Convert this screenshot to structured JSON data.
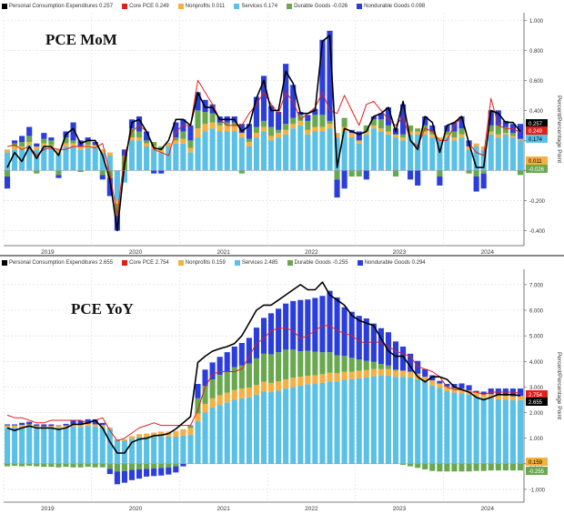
{
  "chart_data": [
    {
      "type": "bar",
      "title": "PCE MoM",
      "ylabel": "Percent/Percentage Point",
      "ylim": [
        -0.5,
        1.05
      ],
      "yticks": [
        "1.000",
        "0.800",
        "0.600",
        "0.400",
        "0.200",
        "0.000",
        "-0.200",
        "-0.400"
      ],
      "xticks": [
        "2019",
        "2020",
        "2021",
        "2022",
        "2023",
        "2024"
      ],
      "legend": [
        {
          "name": "Personal Consumption Expenditures",
          "value": "0.257",
          "color": "#000000"
        },
        {
          "name": "Core PCE",
          "value": "0.249",
          "color": "#e0201b"
        },
        {
          "name": "Nonprofits",
          "value": "0.011",
          "color": "#f5b041"
        },
        {
          "name": "Services",
          "value": "0.174",
          "color": "#5bc0e6"
        },
        {
          "name": "Durable Goods",
          "value": "-0.026",
          "color": "#6aa84f"
        },
        {
          "name": "Nondurable Goods",
          "value": "0.098",
          "color": "#2b3ddb"
        }
      ],
      "last_labels": [
        {
          "text": "0.257",
          "color": "#000000"
        },
        {
          "text": "0.249",
          "color": "#e0201b"
        },
        {
          "text": "0.174",
          "color": "#5bc0e6"
        },
        {
          "text": "0.011",
          "color": "#f5b041"
        },
        {
          "text": "-0.026",
          "color": "#6aa84f"
        }
      ],
      "series": [
        {
          "name": "Services",
          "values": [
            0.12,
            0.14,
            0.14,
            0.17,
            0.14,
            0.16,
            0.15,
            0.12,
            0.16,
            0.16,
            0.14,
            0.15,
            0.15,
            0.12,
            0.1,
            -0.2,
            -0.08,
            0.2,
            0.2,
            0.16,
            0.14,
            0.12,
            0.16,
            0.18,
            0.18,
            0.12,
            0.22,
            0.26,
            0.28,
            0.26,
            0.26,
            0.26,
            0.22,
            0.16,
            0.22,
            0.26,
            0.2,
            0.22,
            0.24,
            0.28,
            0.3,
            0.24,
            0.26,
            0.26,
            0.28,
            0.22,
            0.26,
            0.22,
            0.18,
            0.24,
            0.28,
            0.26,
            0.24,
            0.22,
            0.2,
            0.24,
            0.24,
            0.24,
            0.22,
            0.2,
            0.22,
            0.2,
            0.22,
            0.14,
            0.16,
            0.14,
            0.24,
            0.22,
            0.24,
            0.22,
            0.2
          ]
        },
        {
          "name": "Nonprofits",
          "values": [
            0.02,
            0.02,
            0.02,
            0.02,
            0.02,
            0.02,
            0.02,
            0.02,
            0.02,
            0.02,
            0.02,
            0.02,
            0.02,
            0.02,
            0.02,
            -0.02,
            0.0,
            0.02,
            0.02,
            0.02,
            0.02,
            0.02,
            0.02,
            0.02,
            0.03,
            0.03,
            0.06,
            0.05,
            0.04,
            0.04,
            0.04,
            0.04,
            0.03,
            0.03,
            0.03,
            0.03,
            0.03,
            0.03,
            0.03,
            0.03,
            0.03,
            0.03,
            0.03,
            0.03,
            0.03,
            0.03,
            0.03,
            0.03,
            0.02,
            0.02,
            0.02,
            0.02,
            0.02,
            0.02,
            0.02,
            0.02,
            0.02,
            0.02,
            0.02,
            0.02,
            0.02,
            0.02,
            0.02,
            0.02,
            0.02,
            0.02,
            0.02,
            0.02,
            0.01,
            0.01,
            0.01
          ]
        },
        {
          "name": "Durable Goods",
          "values": [
            -0.04,
            0.02,
            0.03,
            0.04,
            -0.02,
            0.03,
            0.03,
            -0.03,
            0.04,
            0.02,
            -0.01,
            0.03,
            0.0,
            -0.03,
            -0.05,
            -0.08,
            0.1,
            0.06,
            0.04,
            0.02,
            0.03,
            0.02,
            0.0,
            0.02,
            0.05,
            0.05,
            0.12,
            0.08,
            0.06,
            0.02,
            0.02,
            0.02,
            -0.02,
            0.02,
            0.04,
            0.04,
            0.06,
            0.02,
            0.04,
            0.04,
            0.04,
            0.06,
            0.08,
            0.08,
            0.02,
            -0.06,
            0.06,
            -0.04,
            -0.04,
            0.04,
            0.04,
            0.06,
            0.04,
            -0.04,
            0.02,
            0.04,
            0.02,
            0.04,
            0.02,
            -0.04,
            0.02,
            0.04,
            0.04,
            -0.02,
            -0.04,
            -0.02,
            0.04,
            0.06,
            0.04,
            0.02,
            -0.03
          ]
        },
        {
          "name": "Nondurable Goods",
          "values": [
            -0.08,
            0.02,
            0.04,
            0.06,
            0.02,
            0.04,
            0.02,
            -0.02,
            0.04,
            0.12,
            0.04,
            0.02,
            0.02,
            -0.03,
            -0.12,
            -0.1,
            0.04,
            0.06,
            0.1,
            0.06,
            -0.02,
            -0.02,
            0.0,
            0.1,
            0.08,
            0.1,
            0.12,
            0.08,
            0.06,
            0.04,
            0.04,
            0.04,
            0.06,
            0.1,
            0.2,
            0.3,
            0.14,
            0.12,
            0.4,
            0.22,
            0.02,
            0.04,
            0.04,
            0.5,
            0.6,
            -0.12,
            -0.12,
            0.02,
            0.06,
            -0.06,
            0.02,
            0.04,
            0.12,
            0.04,
            0.2,
            -0.06,
            -0.1,
            0.06,
            0.04,
            -0.06,
            0.04,
            0.06,
            0.08,
            0.04,
            -0.1,
            -0.1,
            0.1,
            0.1,
            0.04,
            0.06,
            0.1
          ]
        },
        {
          "name": "Personal Consumption Expenditures",
          "values": [
            0.02,
            0.12,
            0.06,
            0.16,
            0.08,
            0.16,
            0.16,
            0.1,
            0.24,
            0.28,
            0.18,
            0.2,
            0.2,
            0.1,
            -0.06,
            -0.4,
            0.04,
            0.32,
            0.34,
            0.26,
            0.15,
            0.14,
            0.2,
            0.34,
            0.34,
            0.3,
            0.52,
            0.42,
            0.42,
            0.34,
            0.34,
            0.34,
            0.26,
            0.3,
            0.48,
            0.6,
            0.4,
            0.4,
            0.66,
            0.58,
            0.38,
            0.38,
            0.4,
            0.86,
            0.9,
            0.02,
            0.28,
            0.26,
            0.24,
            0.26,
            0.36,
            0.38,
            0.42,
            0.26,
            0.46,
            0.2,
            0.14,
            0.36,
            0.32,
            0.12,
            0.3,
            0.32,
            0.36,
            0.18,
            0.02,
            0.02,
            0.4,
            0.38,
            0.32,
            0.32,
            0.26
          ]
        },
        {
          "name": "Core PCE",
          "values": [
            0.16,
            0.17,
            0.14,
            0.16,
            0.1,
            0.14,
            0.15,
            0.14,
            0.14,
            0.16,
            0.16,
            0.16,
            0.15,
            0.18,
            -0.02,
            -0.3,
            0.1,
            0.26,
            0.3,
            0.26,
            0.14,
            0.12,
            0.1,
            0.26,
            0.3,
            0.3,
            0.6,
            0.52,
            0.44,
            0.34,
            0.3,
            0.3,
            0.3,
            0.38,
            0.44,
            0.52,
            0.44,
            0.38,
            0.52,
            0.46,
            0.34,
            0.38,
            0.42,
            0.52,
            0.4,
            0.38,
            0.5,
            0.4,
            0.3,
            0.44,
            0.46,
            0.4,
            0.34,
            0.3,
            0.36,
            0.2,
            0.16,
            0.28,
            0.26,
            0.2,
            0.2,
            0.3,
            0.36,
            0.18,
            0.12,
            0.1,
            0.48,
            0.3,
            0.28,
            0.28,
            0.25
          ]
        }
      ]
    },
    {
      "type": "bar",
      "title": "PCE YoY",
      "ylabel": "Percent/Percentage Point",
      "ylim": [
        -1.5,
        7.6
      ],
      "yticks": [
        "7.000",
        "6.000",
        "5.000",
        "4.000",
        "3.000",
        "2.000",
        "1.000",
        "0.000",
        "-1.000"
      ],
      "xticks": [
        "2019",
        "2020",
        "2021",
        "2022",
        "2023",
        "2024"
      ],
      "legend": [
        {
          "name": "Personal Consumption Expenditures",
          "value": "2.655",
          "color": "#000000"
        },
        {
          "name": "Core PCE",
          "value": "2.754",
          "color": "#e0201b"
        },
        {
          "name": "Nonprofits",
          "value": "0.159",
          "color": "#f5b041"
        },
        {
          "name": "Services",
          "value": "2.485",
          "color": "#5bc0e6"
        },
        {
          "name": "Durable Goods",
          "value": "-0.255",
          "color": "#6aa84f"
        },
        {
          "name": "Nondurable Goods",
          "value": "0.294",
          "color": "#2b3ddb"
        }
      ],
      "last_labels": [
        {
          "text": "2.754",
          "color": "#e0201b"
        },
        {
          "text": "2.655",
          "color": "#000000"
        },
        {
          "text": "0.159",
          "color": "#f5b041"
        },
        {
          "text": "-0.255",
          "color": "#6aa84f"
        }
      ],
      "series": [
        {
          "name": "Services",
          "values": [
            1.42,
            1.42,
            1.44,
            1.46,
            1.4,
            1.38,
            1.4,
            1.4,
            1.42,
            1.46,
            1.44,
            1.48,
            1.46,
            1.44,
            1.36,
            0.92,
            0.9,
            0.98,
            1.04,
            1.04,
            1.06,
            1.08,
            1.06,
            1.06,
            1.1,
            1.14,
            1.66,
            2.0,
            2.2,
            2.3,
            2.4,
            2.5,
            2.56,
            2.6,
            2.7,
            2.82,
            2.8,
            2.86,
            2.94,
            3.0,
            3.06,
            3.1,
            3.12,
            3.16,
            3.22,
            3.22,
            3.28,
            3.3,
            3.34,
            3.38,
            3.42,
            3.44,
            3.44,
            3.4,
            3.4,
            3.38,
            3.3,
            3.2,
            3.06,
            2.96,
            2.84,
            2.78,
            2.76,
            2.7,
            2.62,
            2.56,
            2.56,
            2.52,
            2.5,
            2.48,
            2.49
          ]
        },
        {
          "name": "Nonprofits",
          "values": [
            0.08,
            0.08,
            0.08,
            0.08,
            0.08,
            0.08,
            0.08,
            0.08,
            0.08,
            0.08,
            0.08,
            0.08,
            0.08,
            0.08,
            0.06,
            0.04,
            0.06,
            0.1,
            0.12,
            0.14,
            0.16,
            0.18,
            0.2,
            0.22,
            0.24,
            0.26,
            0.3,
            0.34,
            0.36,
            0.38,
            0.38,
            0.38,
            0.38,
            0.38,
            0.38,
            0.38,
            0.36,
            0.36,
            0.36,
            0.36,
            0.34,
            0.34,
            0.34,
            0.34,
            0.34,
            0.32,
            0.32,
            0.3,
            0.3,
            0.28,
            0.28,
            0.26,
            0.26,
            0.24,
            0.24,
            0.22,
            0.22,
            0.2,
            0.2,
            0.18,
            0.18,
            0.18,
            0.18,
            0.17,
            0.17,
            0.16,
            0.16,
            0.16,
            0.16,
            0.16,
            0.16
          ]
        },
        {
          "name": "Durable Goods",
          "values": [
            -0.1,
            -0.08,
            -0.1,
            -0.08,
            -0.1,
            -0.12,
            -0.12,
            -0.14,
            -0.12,
            -0.14,
            -0.14,
            -0.12,
            -0.14,
            -0.14,
            -0.2,
            -0.3,
            -0.28,
            -0.24,
            -0.22,
            -0.2,
            -0.18,
            -0.16,
            -0.14,
            -0.1,
            0.0,
            0.1,
            0.6,
            0.7,
            0.74,
            0.8,
            0.84,
            0.9,
            0.9,
            0.94,
            1.04,
            1.1,
            1.12,
            1.14,
            1.16,
            1.1,
            1.0,
            0.98,
            0.92,
            0.86,
            0.8,
            0.7,
            0.62,
            0.54,
            0.44,
            0.36,
            0.28,
            0.2,
            0.14,
            0.04,
            -0.04,
            -0.1,
            -0.16,
            -0.22,
            -0.28,
            -0.3,
            -0.3,
            -0.3,
            -0.3,
            -0.3,
            -0.28,
            -0.28,
            -0.26,
            -0.26,
            -0.26,
            -0.26,
            -0.26
          ]
        },
        {
          "name": "Nondurable Goods",
          "values": [
            0.04,
            0.04,
            0.08,
            0.1,
            0.06,
            0.08,
            0.06,
            0.02,
            0.06,
            0.14,
            0.16,
            0.18,
            0.2,
            0.08,
            -0.2,
            -0.5,
            -0.46,
            -0.4,
            -0.36,
            -0.3,
            -0.3,
            -0.3,
            -0.28,
            -0.24,
            -0.1,
            0.0,
            0.56,
            0.64,
            0.66,
            0.7,
            0.74,
            0.8,
            0.88,
            1.0,
            1.2,
            1.4,
            1.6,
            1.7,
            1.8,
            1.9,
            2.0,
            2.0,
            2.1,
            2.2,
            2.4,
            2.26,
            1.9,
            1.8,
            1.7,
            1.66,
            1.5,
            1.4,
            1.3,
            1.1,
            0.94,
            0.7,
            0.5,
            0.3,
            0.2,
            0.1,
            0.1,
            0.16,
            0.2,
            0.2,
            0.06,
            0.1,
            0.22,
            0.26,
            0.28,
            0.3,
            0.29
          ]
        },
        {
          "name": "Personal Consumption Expenditures",
          "values": [
            1.4,
            1.3,
            1.4,
            1.48,
            1.4,
            1.4,
            1.4,
            1.34,
            1.4,
            1.54,
            1.54,
            1.6,
            1.7,
            1.4,
            0.86,
            0.42,
            0.42,
            0.84,
            0.96,
            1.0,
            1.1,
            1.12,
            1.18,
            1.36,
            1.6,
            1.84,
            3.96,
            4.2,
            4.4,
            4.5,
            4.58,
            4.7,
            5.0,
            5.5,
            6.0,
            6.2,
            6.2,
            6.4,
            6.6,
            6.8,
            7.0,
            6.8,
            6.8,
            7.1,
            6.6,
            6.4,
            6.2,
            5.8,
            5.6,
            5.5,
            5.4,
            4.9,
            4.4,
            4.2,
            4.2,
            3.8,
            3.4,
            3.2,
            3.4,
            3.4,
            3.3,
            3.0,
            2.9,
            2.8,
            2.6,
            2.5,
            2.6,
            2.7,
            2.7,
            2.7,
            2.66
          ]
        },
        {
          "name": "Core PCE",
          "values": [
            1.9,
            1.8,
            1.8,
            1.7,
            1.6,
            1.6,
            1.7,
            1.7,
            1.7,
            1.7,
            1.7,
            1.6,
            1.7,
            1.8,
            1.3,
            0.9,
            1.0,
            1.2,
            1.4,
            1.5,
            1.6,
            1.5,
            1.5,
            1.5,
            1.5,
            1.5,
            2.1,
            3.0,
            3.5,
            3.6,
            3.6,
            3.6,
            3.7,
            4.2,
            4.7,
            4.9,
            5.2,
            5.3,
            5.3,
            5.2,
            4.9,
            5.0,
            5.2,
            5.4,
            5.4,
            5.2,
            5.1,
            5.0,
            4.8,
            4.7,
            4.8,
            4.7,
            4.6,
            4.4,
            4.3,
            4.2,
            3.8,
            3.7,
            3.6,
            3.4,
            3.0,
            2.9,
            2.9,
            2.8,
            2.8,
            2.7,
            2.8,
            2.8,
            2.8,
            2.8,
            2.75
          ]
        }
      ]
    }
  ]
}
